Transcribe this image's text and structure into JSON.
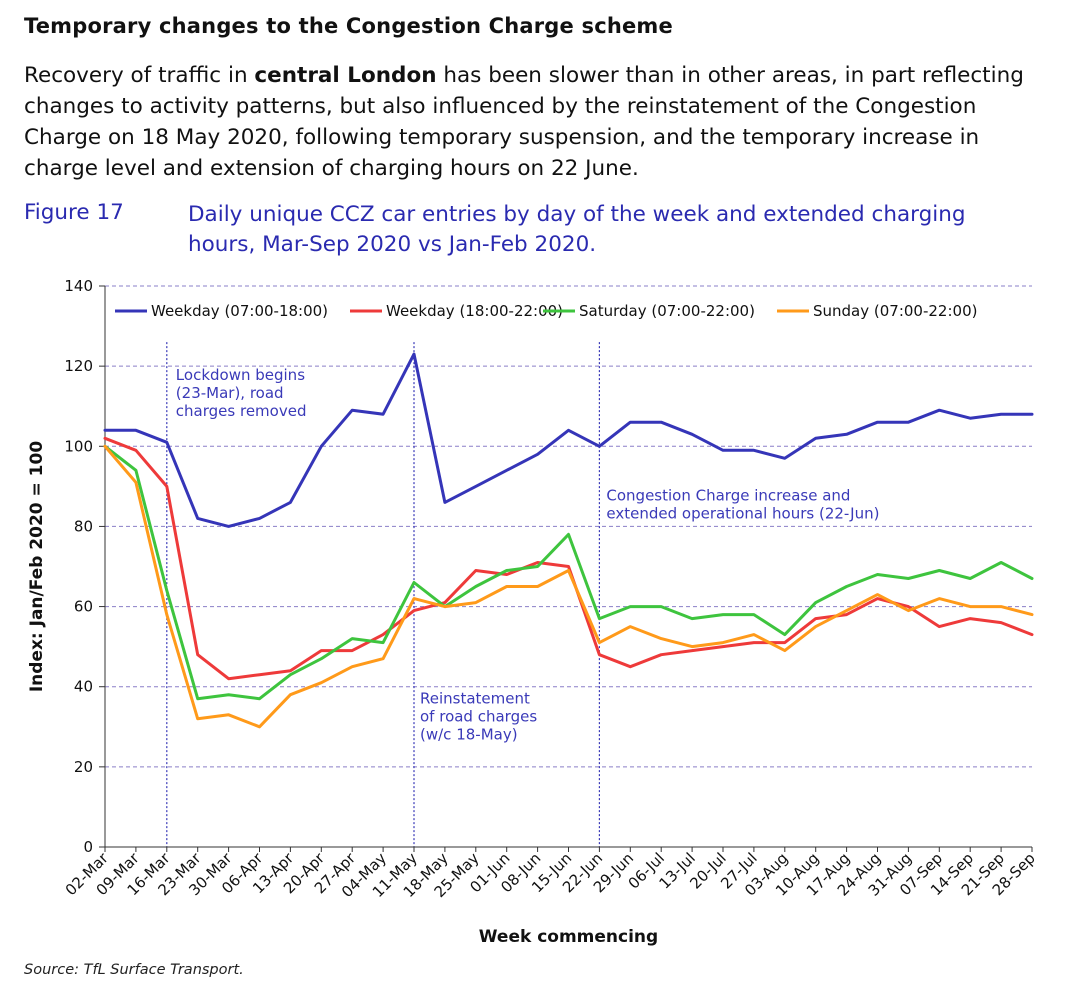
{
  "header": {
    "title": "Temporary changes to the Congestion Charge scheme",
    "intro_pre": "Recovery of traffic in ",
    "intro_bold": "central London",
    "intro_post": " has been slower than in other areas, in part reflecting changes to activity patterns, but also influenced by the reinstatement of the Congestion Charge on 18 May 2020, following temporary suspension, and the temporary increase in charge level and extension of charging hours on 22 June."
  },
  "figure": {
    "label": "Figure 17",
    "title": "Daily unique CCZ car entries by day of the week and extended charging hours, Mar-Sep 2020 vs Jan-Feb 2020."
  },
  "source": "Source: TfL Surface Transport.",
  "chart_data": {
    "type": "line",
    "title": "",
    "xlabel": "Week commencing",
    "ylabel": "Index: Jan/Feb 2020 = 100",
    "ylim": [
      0,
      140
    ],
    "yticks": [
      0,
      20,
      40,
      60,
      80,
      100,
      120,
      140
    ],
    "grid": "horizontal dashed",
    "legend_position": "top",
    "categories": [
      "02-Mar",
      "09-Mar",
      "16-Mar",
      "23-Mar",
      "30-Mar",
      "06-Apr",
      "13-Apr",
      "20-Apr",
      "27-Apr",
      "04-May",
      "11-May",
      "18-May",
      "25-May",
      "01-Jun",
      "08-Jun",
      "15-Jun",
      "22-Jun",
      "29-Jun",
      "06-Jul",
      "13-Jul",
      "20-Jul",
      "27-Jul",
      "03-Aug",
      "10-Aug",
      "17-Aug",
      "24-Aug",
      "31-Aug",
      "07-Sep",
      "14-Sep",
      "21-Sep",
      "28-Sep"
    ],
    "series": [
      {
        "name": "Weekday (07:00-18:00)",
        "color": "#3535b8",
        "values": [
          104,
          104,
          101,
          82,
          80,
          82,
          86,
          100,
          109,
          108,
          123,
          86,
          90,
          94,
          98,
          104,
          100,
          106,
          106,
          103,
          99,
          99,
          97,
          102,
          103,
          106,
          106,
          109,
          107,
          108,
          108
        ]
      },
      {
        "name": "Weekday (18:00-22:00)",
        "color": "#ee3a3a",
        "values": [
          102,
          99,
          90,
          48,
          42,
          43,
          44,
          49,
          49,
          53,
          59,
          61,
          69,
          68,
          71,
          70,
          48,
          45,
          48,
          49,
          50,
          51,
          51,
          57,
          58,
          62,
          60,
          55,
          57,
          56,
          53
        ]
      },
      {
        "name": "Saturday (07:00-22:00)",
        "color": "#3ec43e",
        "values": [
          100,
          94,
          64,
          37,
          38,
          37,
          43,
          47,
          52,
          51,
          66,
          60,
          65,
          69,
          70,
          78,
          57,
          60,
          60,
          57,
          58,
          58,
          53,
          61,
          65,
          68,
          67,
          69,
          67,
          71,
          67
        ]
      },
      {
        "name": "Sunday (07:00-22:00)",
        "color": "#ff9a1a",
        "values": [
          100,
          91,
          58,
          32,
          33,
          30,
          38,
          41,
          45,
          47,
          62,
          60,
          61,
          65,
          65,
          69,
          51,
          55,
          52,
          50,
          51,
          53,
          49,
          55,
          59,
          63,
          59,
          62,
          60,
          60,
          58
        ]
      }
    ],
    "annotations": [
      {
        "at": "16-Mar",
        "lines": [
          "Lockdown begins",
          "(23-Mar), road",
          "charges removed"
        ]
      },
      {
        "at": "11-May",
        "lines": [
          "Reinstatement",
          "of road charges",
          "(w/c 18-May)"
        ]
      },
      {
        "at": "22-Jun",
        "lines": [
          "Congestion Charge increase and",
          "extended operational hours (22-Jun)"
        ]
      }
    ]
  }
}
